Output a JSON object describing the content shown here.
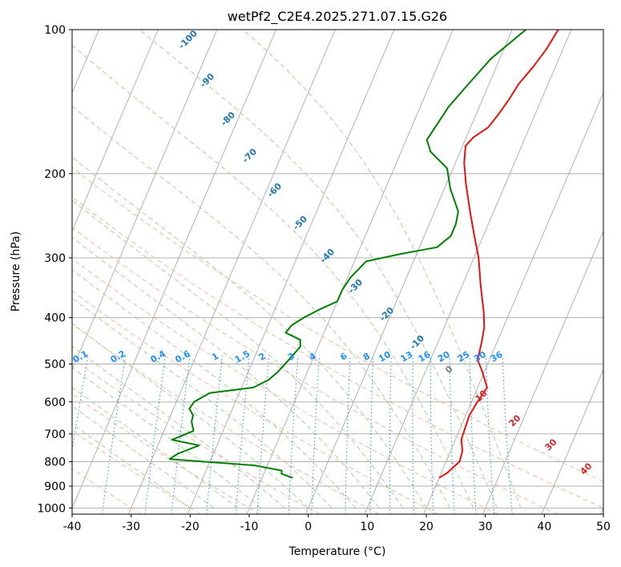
{
  "chart_data": {
    "type": "line",
    "title": "wetPf2_C2E4.2025.271.07.15.G26",
    "xlabel": "Temperature (°C)",
    "ylabel": "Pressure (hPa)",
    "xlim": [
      -40,
      50
    ],
    "ylim": [
      1030,
      100
    ],
    "y_scale": "log",
    "x_ticks": [
      -40,
      -30,
      -20,
      -10,
      0,
      10,
      20,
      30,
      40,
      50
    ],
    "y_ticks": [
      100,
      200,
      300,
      400,
      500,
      600,
      700,
      800,
      900,
      1000
    ],
    "grid": true,
    "series": [
      {
        "role": "temperature",
        "color": "#e8120f",
        "points": [
          [
            20.0,
            865
          ],
          [
            21.0,
            845
          ],
          [
            22.3,
            800
          ],
          [
            22.0,
            760
          ],
          [
            21.0,
            720
          ],
          [
            20.8,
            680
          ],
          [
            20.6,
            640
          ],
          [
            21.0,
            600
          ],
          [
            21.6,
            560
          ],
          [
            19.7,
            520
          ],
          [
            18.0,
            490
          ],
          [
            17.4,
            450
          ],
          [
            16.8,
            420
          ],
          [
            15.6,
            390
          ],
          [
            13.0,
            340
          ],
          [
            10.8,
            300
          ],
          [
            8.5,
            270
          ],
          [
            6.0,
            240
          ],
          [
            3.3,
            210
          ],
          [
            1.5,
            190
          ],
          [
            0.5,
            175
          ],
          [
            1.2,
            168
          ],
          [
            3.0,
            160
          ],
          [
            3.8,
            150
          ],
          [
            4.5,
            140
          ],
          [
            5.0,
            130
          ],
          [
            6.2,
            120
          ],
          [
            7.2,
            110
          ],
          [
            7.8,
            100
          ]
        ]
      },
      {
        "role": "dewpoint",
        "color": "#008000",
        "points": [
          [
            -4.8,
            865
          ],
          [
            -7.0,
            848
          ],
          [
            -7.2,
            835
          ],
          [
            -12.0,
            815
          ],
          [
            -27.0,
            790
          ],
          [
            -26.0,
            770
          ],
          [
            -23.0,
            740
          ],
          [
            -28.0,
            720
          ],
          [
            -25.0,
            690
          ],
          [
            -26.0,
            660
          ],
          [
            -26.2,
            640
          ],
          [
            -27.3,
            620
          ],
          [
            -27.0,
            600
          ],
          [
            -25.0,
            575
          ],
          [
            -18.0,
            560
          ],
          [
            -16.0,
            540
          ],
          [
            -15.0,
            520
          ],
          [
            -14.0,
            490
          ],
          [
            -13.0,
            460
          ],
          [
            -13.5,
            445
          ],
          [
            -16.5,
            430
          ],
          [
            -16.0,
            415
          ],
          [
            -14.5,
            400
          ],
          [
            -12.5,
            385
          ],
          [
            -10.0,
            370
          ],
          [
            -10.0,
            350
          ],
          [
            -9.5,
            330
          ],
          [
            -8.0,
            305
          ],
          [
            -3.0,
            295
          ],
          [
            3.0,
            285
          ],
          [
            4.5,
            270
          ],
          [
            4.5,
            255
          ],
          [
            4.0,
            240
          ],
          [
            1.0,
            215
          ],
          [
            -1.0,
            195
          ],
          [
            -5.0,
            180
          ],
          [
            -6.5,
            170
          ],
          [
            -6.0,
            160
          ],
          [
            -5.2,
            145
          ],
          [
            -3.5,
            130
          ],
          [
            -1.5,
            115
          ],
          [
            2.3,
            100
          ]
        ]
      }
    ],
    "dry_adiabat_labels": [
      "-100",
      "-90",
      "-80",
      "-70",
      "-60",
      "-50",
      "-40",
      "-30",
      "-20",
      "-10",
      "0",
      "10",
      "20",
      "30",
      "40"
    ],
    "mixing_ratio_labels": [
      "0.1",
      "0.2",
      "0.4",
      "0.6",
      "1",
      "1.5",
      "2",
      "3",
      "4",
      "6",
      "8",
      "10",
      "13",
      "16",
      "20",
      "25",
      "30",
      "36"
    ],
    "colors": {
      "isotherm": "#a0a0a0",
      "isobar": "#b0b0b0",
      "dry_adiabat": "#f4b8a0",
      "moist_adiabat": "#a8d0a0",
      "mixing_ratio": "#1e90ff",
      "dry_adiabat_label_cold": "#1f77b4",
      "dry_adiabat_label_zero": "#7f7f7f",
      "dry_adiabat_label_warm": "#d62728"
    }
  }
}
